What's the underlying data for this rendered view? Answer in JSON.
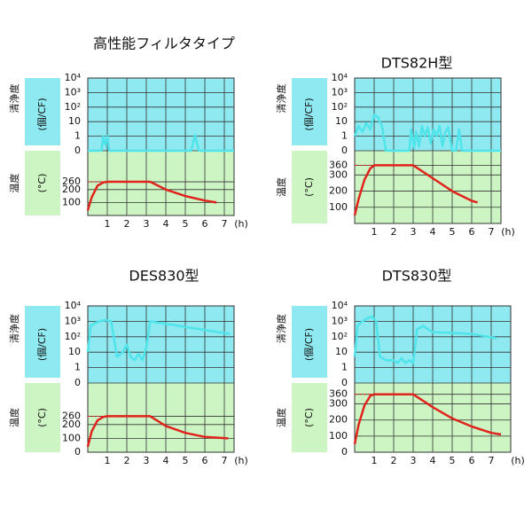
{
  "chart_data": [
    {
      "type": "line",
      "title": "高性能フィルタタイプ",
      "xlabel": "(h)",
      "ylabel": [
        "清浄度",
        "(個/CF)"
      ],
      "y2label": [
        "温度",
        "(°C)"
      ],
      "yscale": "log",
      "grid": true,
      "xlim": [
        0,
        7.5
      ],
      "xticks": [
        1,
        2,
        3,
        4,
        5,
        6,
        7
      ],
      "ylim": [
        0,
        10000
      ],
      "yticks": [
        {
          "value": 10000,
          "label": "10⁴"
        },
        {
          "value": 1000,
          "label": "10³"
        },
        {
          "value": 100,
          "label": "10²"
        },
        10,
        1,
        0
      ],
      "y2lim": [
        0,
        500
      ],
      "y2ticks": [
        260,
        200,
        100
      ],
      "reference_line": 260,
      "series": [
        {
          "color": "#4fe3ea",
          "x": [
            0,
            0.7,
            0.8,
            0.9,
            1.0,
            1.1,
            5.3,
            5.5,
            5.7,
            7.5
          ],
          "values": [
            0,
            0,
            1,
            0.4,
            1,
            0,
            0,
            1.2,
            0,
            0
          ]
        },
        {
          "color": "#e0231c",
          "axis": "y2",
          "x": [
            0,
            0.2,
            0.5,
            0.8,
            1,
            3.2,
            4,
            5,
            6,
            6.6
          ],
          "values": [
            40,
            140,
            230,
            255,
            260,
            260,
            200,
            150,
            115,
            100
          ]
        }
      ]
    },
    {
      "type": "line",
      "title": "DTS82H型",
      "xlabel": "(h)",
      "ylabel": [
        "清浄度",
        "(個/CF)"
      ],
      "y2label": [
        "温度",
        "(°C)"
      ],
      "yscale": "log",
      "grid": true,
      "xlim": [
        0,
        7.5
      ],
      "xticks": [
        1,
        2,
        3,
        4,
        5,
        6,
        7
      ],
      "ylim": [
        0,
        10000
      ],
      "yticks": [
        {
          "value": 10000,
          "label": "10⁴"
        },
        {
          "value": 1000,
          "label": "10³"
        },
        {
          "value": 100,
          "label": "10²"
        },
        10,
        1,
        0
      ],
      "y2lim": [
        0,
        450
      ],
      "y2ticks": [
        360,
        300,
        200,
        100
      ],
      "reference_line": 360,
      "series": [
        {
          "color": "#4fe3ea",
          "x": [
            0,
            0.2,
            0.4,
            0.6,
            0.8,
            1,
            1.2,
            1.4,
            1.6,
            2.8,
            2.9,
            3.05,
            3.15,
            3.3,
            3.45,
            3.6,
            3.75,
            3.9,
            4.05,
            4.2,
            4.35,
            4.5,
            4.65,
            4.8,
            5,
            5.2,
            5.35,
            5.5,
            7.5
          ],
          "values": [
            1,
            5,
            2,
            8,
            3,
            30,
            20,
            5,
            0,
            0,
            3,
            0.2,
            2,
            0.3,
            5,
            1,
            4,
            0.5,
            3,
            1,
            5,
            0.3,
            2,
            4,
            0,
            0,
            3,
            0,
            0
          ]
        },
        {
          "color": "#e0231c",
          "axis": "y2",
          "x": [
            0,
            0.2,
            0.5,
            0.8,
            1,
            3,
            4,
            5,
            6,
            6.3
          ],
          "values": [
            50,
            150,
            270,
            340,
            360,
            360,
            280,
            200,
            140,
            130
          ]
        }
      ]
    },
    {
      "type": "line",
      "title": "DES830型",
      "xlabel": "(h)",
      "ylabel": [
        "清浄度",
        "(個/CF)"
      ],
      "y2label": [
        "温度",
        "(°C)"
      ],
      "yscale": "log",
      "grid": true,
      "xlim": [
        0,
        7.5
      ],
      "xticks": [
        1,
        2,
        3,
        4,
        5,
        6,
        7
      ],
      "ylim": [
        0,
        10000
      ],
      "yticks": [
        {
          "value": 10000,
          "label": "10⁴"
        },
        {
          "value": 1000,
          "label": "10³"
        },
        {
          "value": 100,
          "label": "10²"
        },
        10,
        1,
        0
      ],
      "y2lim": [
        0,
        500
      ],
      "y2ticks": [
        260,
        200,
        100,
        0
      ],
      "reference_line": 260,
      "series": [
        {
          "color": "#4fe3ea",
          "x": [
            0,
            0.15,
            0.4,
            0.6,
            0.9,
            1.2,
            1.5,
            1.8,
            2,
            2.2,
            2.4,
            2.6,
            2.8,
            3,
            3.2,
            7.3
          ],
          "values": [
            10,
            500,
            800,
            1000,
            1200,
            1000,
            5,
            10,
            30,
            5,
            3,
            8,
            3,
            20,
            1000,
            150
          ]
        },
        {
          "color": "#e0231c",
          "axis": "y2",
          "x": [
            0,
            0.2,
            0.5,
            0.8,
            1,
            3.2,
            4,
            5,
            6,
            7.2
          ],
          "values": [
            40,
            150,
            230,
            255,
            260,
            260,
            190,
            140,
            110,
            100
          ]
        }
      ]
    },
    {
      "type": "line",
      "title": "DTS830型",
      "xlabel": "(h)",
      "ylabel": [
        "清浄度",
        "(個/CF)"
      ],
      "y2label": [
        "温度",
        "(°C)"
      ],
      "yscale": "log",
      "grid": true,
      "xlim": [
        0,
        8
      ],
      "xticks": [
        1,
        2,
        3,
        4,
        5,
        6,
        7
      ],
      "ylim": [
        0,
        10000
      ],
      "yticks": [
        {
          "value": 10000,
          "label": "10⁴"
        },
        {
          "value": 1000,
          "label": "10³"
        },
        {
          "value": 100,
          "label": "10²"
        },
        10,
        1,
        0
      ],
      "y2lim": [
        0,
        430
      ],
      "y2ticks": [
        360,
        300,
        200,
        100,
        0
      ],
      "reference_line": 360,
      "series": [
        {
          "color": "#4fe3ea",
          "x": [
            0,
            0.15,
            0.3,
            0.6,
            0.9,
            1.1,
            1.3,
            1.6,
            2,
            2.2,
            2.4,
            2.6,
            2.8,
            3,
            3.2,
            3.5,
            4,
            5,
            6,
            7.3
          ],
          "values": [
            5,
            500,
            800,
            1500,
            2000,
            1000,
            5,
            3,
            3,
            2,
            4,
            2,
            3,
            2,
            300,
            500,
            200,
            180,
            150,
            80
          ]
        },
        {
          "color": "#e0231c",
          "axis": "y2",
          "x": [
            0,
            0.2,
            0.5,
            0.8,
            1,
            3,
            4,
            5,
            6,
            7,
            7.5
          ],
          "values": [
            50,
            170,
            290,
            350,
            360,
            360,
            280,
            210,
            160,
            120,
            110
          ]
        }
      ]
    }
  ]
}
